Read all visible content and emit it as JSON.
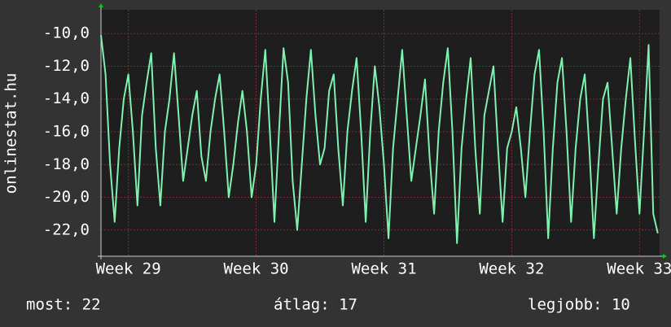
{
  "chart_data": {
    "type": "line",
    "ylabel": "onlinestat.hu",
    "annotations": [
      "most: 22",
      "átlag: 17",
      "legjobb: 10"
    ],
    "x": [
      -1.5,
      -1.25,
      -1,
      -0.75,
      -0.5,
      -0.25,
      0,
      0.25,
      0.5,
      0.75,
      1,
      1.25,
      1.5,
      1.75,
      2,
      2.25,
      2.5,
      2.75,
      3,
      3.25,
      3.5,
      3.75,
      4,
      4.25,
      4.5,
      4.75,
      5,
      5.25,
      5.5,
      5.75,
      6,
      6.25,
      6.5,
      6.75,
      7,
      7.25,
      7.5,
      7.75,
      8,
      8.25,
      8.5,
      8.75,
      9,
      9.25,
      9.5,
      9.75,
      10,
      10.25,
      10.5,
      10.75,
      11,
      11.25,
      11.5,
      11.75,
      12,
      12.25,
      12.5,
      12.75,
      13,
      13.25,
      13.5,
      13.75,
      14,
      14.25,
      14.5,
      14.75,
      15,
      15.25,
      15.5,
      15.75,
      16,
      16.25,
      16.5,
      16.75,
      17,
      17.25,
      17.5,
      17.75,
      18,
      18.25,
      18.5,
      18.75,
      19,
      19.25,
      19.5,
      19.75,
      20,
      20.25,
      20.5,
      20.75,
      21,
      21.25,
      21.5,
      21.75,
      22,
      22.25,
      22.5,
      22.75,
      23,
      23.25,
      23.5,
      23.75,
      24,
      24.25,
      24.5,
      24.75,
      25,
      25.25,
      25.5,
      25.75,
      26,
      26.25,
      26.5,
      26.75,
      27,
      27.25,
      27.5,
      27.75,
      28,
      28.25,
      28.5,
      28.75,
      29
    ],
    "series": [
      {
        "color": "#80f0b0",
        "values": [
          -10.1,
          -12.5,
          -18,
          -21.5,
          -17,
          -14,
          -12.5,
          -16,
          -20.5,
          -15,
          -13,
          -11.2,
          -17,
          -20.5,
          -16,
          -14,
          -11.2,
          -15,
          -19,
          -17,
          -15,
          -13.5,
          -17.5,
          -19,
          -16,
          -14,
          -12.5,
          -16,
          -20,
          -18,
          -15.5,
          -13.5,
          -16,
          -20,
          -18,
          -14,
          -11,
          -16,
          -21.5,
          -16,
          -10.9,
          -13,
          -19,
          -22,
          -18,
          -14,
          -11,
          -15,
          -18,
          -17,
          -13.5,
          -12.5,
          -17,
          -20.5,
          -16,
          -13.5,
          -11.5,
          -16,
          -21.5,
          -16,
          -12,
          -14.5,
          -18,
          -22.5,
          -17,
          -14,
          -11,
          -15,
          -19,
          -17,
          -15,
          -12.8,
          -17.5,
          -21,
          -16,
          -13,
          -10.9,
          -16,
          -22.8,
          -17,
          -14,
          -11.5,
          -17,
          -21,
          -15,
          -13.5,
          -12,
          -17,
          -21.5,
          -17,
          -16,
          -14.5,
          -17,
          -20,
          -16,
          -12.5,
          -11,
          -16,
          -22.5,
          -17,
          -13,
          -11.5,
          -16,
          -21.5,
          -17,
          -14,
          -12.5,
          -17,
          -22.5,
          -18,
          -14,
          -13,
          -17,
          -21,
          -17,
          -14,
          -11.5,
          -16.5,
          -21,
          -16,
          -10.7,
          -21,
          -22.2
        ]
      }
    ],
    "xlim": [
      -1.5,
      29.1
    ],
    "xticks": [
      {
        "value": 0,
        "label": "Week 29"
      },
      {
        "value": 7,
        "label": "Week 30"
      },
      {
        "value": 14,
        "label": "Week 31"
      },
      {
        "value": 21,
        "label": "Week 32"
      },
      {
        "value": 28,
        "label": "Week 33"
      }
    ],
    "ylim": [
      -23.6,
      -8.55
    ],
    "yticks": [
      {
        "value": -10,
        "label": "-10,0"
      },
      {
        "value": -12,
        "label": "-12,0"
      },
      {
        "value": -14,
        "label": "-14,0"
      },
      {
        "value": -16,
        "label": "-16,0"
      },
      {
        "value": -18,
        "label": "-18,0"
      },
      {
        "value": -20,
        "label": "-20,0"
      },
      {
        "value": -22,
        "label": "-22,0"
      }
    ],
    "grid": true
  }
}
